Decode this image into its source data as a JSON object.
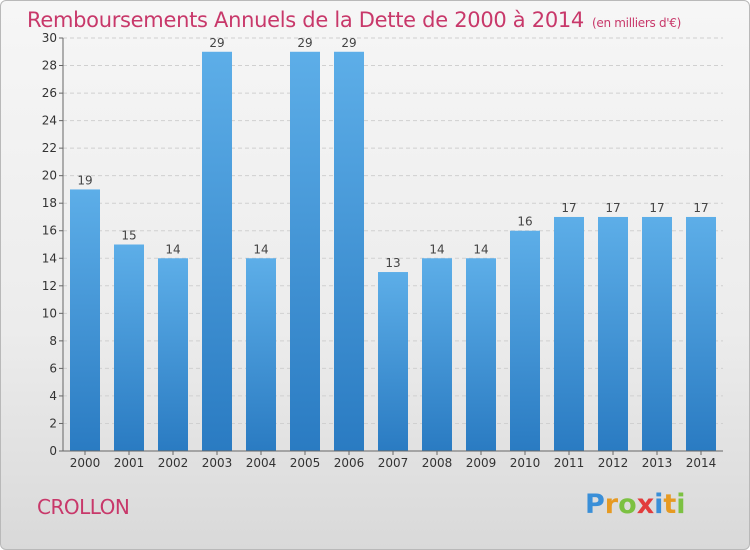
{
  "header": {
    "title": "Remboursements Annuels de la Dette de 2000 à 2014",
    "unit": "(en milliers d'€)"
  },
  "footer": {
    "commune": "CROLLON",
    "logo_letters": [
      "P",
      "r",
      "o",
      "x",
      "i",
      "t",
      "i"
    ]
  },
  "colors": {
    "bar_top": "#5daee8",
    "bar_bottom": "#2a7bc2",
    "title": "#c8386a"
  },
  "chart_data": {
    "type": "bar",
    "title": "Remboursements Annuels de la Dette de 2000 à 2014",
    "xlabel": "",
    "ylabel": "",
    "categories": [
      "2000",
      "2001",
      "2002",
      "2003",
      "2004",
      "2005",
      "2006",
      "2007",
      "2008",
      "2009",
      "2010",
      "2011",
      "2012",
      "2013",
      "2014"
    ],
    "values": [
      19,
      15,
      14,
      29,
      14,
      29,
      29,
      13,
      14,
      14,
      16,
      17,
      17,
      17,
      17
    ],
    "ylim": [
      0,
      30
    ],
    "yticks": [
      0,
      2,
      4,
      6,
      8,
      10,
      12,
      14,
      16,
      18,
      20,
      22,
      24,
      26,
      28,
      30
    ],
    "grid": true
  }
}
